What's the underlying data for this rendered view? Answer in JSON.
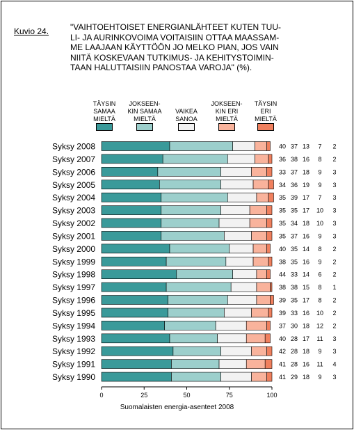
{
  "figure": {
    "label": "Kuvio 24.",
    "title_lines": [
      "\"VAIHTOEHTOISET ENERGIANLÄHTEET KUTEN TUU-",
      "LI- JA AURINKOVOIMA VOITAISIIN OTTAA MAASSAM-",
      "ME LAAJAAN KÄYTTÖÖN JO MELKO PIAN, JOS VAIN",
      "NIITÄ KOSKEVAAN TUTKIMUS- JA KEHITYSTOIMIN-",
      "TAAN HALUTTAISIIN PANOSTAA VAROJA\" (%)."
    ],
    "source": "Suomalaisten energia-asenteet 2008"
  },
  "legend": [
    {
      "lines": [
        "TÄYSIN",
        "SAMAA",
        "MIELTÄ"
      ],
      "color": "#3a9a9a"
    },
    {
      "lines": [
        "JOKSEEN-",
        "KIN SAMAA",
        "MIELTÄ"
      ],
      "color": "#9ccfcc"
    },
    {
      "lines": [
        "VAIKEA",
        "SANOA"
      ],
      "color": "#f2f2f2"
    },
    {
      "lines": [
        "JOKSEEN-",
        "KIN ERI",
        "MIELTÄ"
      ],
      "color": "#f9b39c"
    },
    {
      "lines": [
        "TÄYSIN",
        "ERI",
        "MIELTÄ"
      ],
      "color": "#f0805e"
    }
  ],
  "chart_data": {
    "type": "bar",
    "orientation": "horizontal",
    "stacked": true,
    "xlim": [
      0,
      100
    ],
    "xticks": [
      "0",
      "25",
      "50",
      "75",
      "100"
    ],
    "categories": [
      "Syksy 2008",
      "Syksy 2007",
      "Syksy 2006",
      "Syksy 2005",
      "Syksy 2004",
      "Syksy 2003",
      "Syksy 2002",
      "Syksy 2001",
      "Syksy 2000",
      "Syksy 1999",
      "Syksy 1998",
      "Syksy 1997",
      "Syksy 1996",
      "Syksy 1995",
      "Syksy 1994",
      "Syksy 1993",
      "Syksy 1992",
      "Syksy 1991",
      "Syksy 1990"
    ],
    "series": [
      {
        "color": "#3a9a9a",
        "values": [
          40,
          36,
          33,
          34,
          35,
          35,
          35,
          35,
          40,
          38,
          44,
          38,
          39,
          39,
          37,
          40,
          42,
          41,
          41
        ]
      },
      {
        "color": "#9ccfcc",
        "values": [
          37,
          38,
          37,
          36,
          39,
          35,
          34,
          37,
          35,
          35,
          33,
          38,
          35,
          33,
          30,
          28,
          28,
          28,
          29
        ]
      },
      {
        "color": "#f2f2f2",
        "values": [
          13,
          16,
          18,
          19,
          17,
          17,
          18,
          16,
          14,
          16,
          14,
          15,
          17,
          16,
          18,
          17,
          18,
          16,
          18
        ]
      },
      {
        "color": "#f9b39c",
        "values": [
          7,
          8,
          9,
          9,
          7,
          10,
          10,
          9,
          8,
          9,
          6,
          8,
          8,
          10,
          12,
          11,
          9,
          11,
          9
        ]
      },
      {
        "color": "#f0805e",
        "values": [
          2,
          2,
          3,
          3,
          3,
          3,
          3,
          3,
          2,
          2,
          2,
          1,
          2,
          2,
          2,
          3,
          3,
          4,
          3
        ]
      }
    ]
  }
}
